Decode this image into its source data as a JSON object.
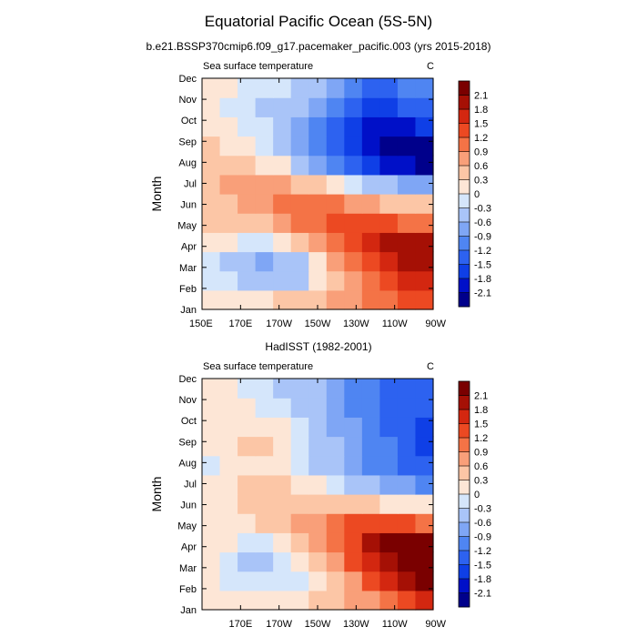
{
  "figure": {
    "title": "Equatorial Pacific Ocean (5S-5N)"
  },
  "colorbar": {
    "colors": [
      "#00008b",
      "#0010c8",
      "#0f3fe6",
      "#2d62f0",
      "#4f85f2",
      "#7fa6f5",
      "#a9c4f8",
      "#d5e6fb",
      "#fde6d6",
      "#fcc6a6",
      "#f99f79",
      "#f47346",
      "#ec4922",
      "#d32710",
      "#a51005",
      "#7a0000"
    ],
    "labels": [
      "-2.1",
      "-1.8",
      "-1.5",
      "-1.2",
      "-0.9",
      "-0.6",
      "-0.3",
      "0",
      "0.3",
      "0.6",
      "0.9",
      "1.2",
      "1.5",
      "1.8",
      "2.1"
    ]
  },
  "chart_data": [
    {
      "type": "heatmap",
      "title": "b.e21.BSSP370cmip6.f09_g17.pacemaker_pacific.003 (yrs 2015-2018)",
      "left_label": "Sea surface temperature",
      "right_label": "C",
      "ylabel": "Month",
      "x_tick_labels": [
        "150E",
        "170E",
        "170W",
        "150W",
        "130W",
        "110W",
        "90W"
      ],
      "y_tick_labels": [
        "Jan",
        "Feb",
        "Mar",
        "Apr",
        "May",
        "Jun",
        "Jul",
        "Aug",
        "Sep",
        "Oct",
        "Nov",
        "Dec"
      ],
      "x_values": [
        150,
        160,
        170,
        180,
        190,
        200,
        210,
        220,
        230,
        240,
        250,
        260,
        270
      ],
      "y_values": [
        "Jan",
        "Feb",
        "Mar",
        "Apr",
        "May",
        "Jun",
        "Jul",
        "Aug",
        "Sep",
        "Oct",
        "Nov",
        "Dec"
      ],
      "z": [
        [
          0.2,
          0.2,
          0.2,
          0.2,
          0.3,
          0.4,
          0.5,
          0.6,
          0.7,
          0.9,
          1.1,
          1.2,
          1.3
        ],
        [
          -0.1,
          -0.2,
          -0.3,
          -0.4,
          -0.4,
          -0.3,
          0.1,
          0.4,
          0.7,
          1.0,
          1.3,
          1.5,
          1.6
        ],
        [
          -0.1,
          -0.3,
          -0.5,
          -0.6,
          -0.5,
          -0.3,
          0.2,
          0.6,
          0.9,
          1.3,
          1.6,
          1.8,
          1.9
        ],
        [
          0.0,
          0.0,
          -0.1,
          -0.1,
          0.1,
          0.4,
          0.7,
          1.0,
          1.3,
          1.5,
          1.7,
          1.8,
          1.7
        ],
        [
          0.3,
          0.3,
          0.4,
          0.5,
          0.6,
          0.9,
          1.1,
          1.2,
          1.3,
          1.3,
          1.2,
          1.1,
          1.0
        ],
        [
          0.4,
          0.5,
          0.6,
          0.8,
          0.9,
          1.0,
          1.0,
          0.9,
          0.8,
          0.6,
          0.4,
          0.3,
          0.3
        ],
        [
          0.5,
          0.6,
          0.7,
          0.7,
          0.7,
          0.5,
          0.3,
          0.1,
          -0.1,
          -0.3,
          -0.5,
          -0.6,
          -0.7
        ],
        [
          0.4,
          0.4,
          0.3,
          0.2,
          0.0,
          -0.3,
          -0.6,
          -0.9,
          -1.2,
          -1.5,
          -1.7,
          -1.9,
          -2.0
        ],
        [
          0.3,
          0.1,
          0.0,
          -0.1,
          -0.3,
          -0.6,
          -0.9,
          -1.3,
          -1.6,
          -1.8,
          -2.0,
          -2.0,
          -2.0
        ],
        [
          0.1,
          0.0,
          -0.1,
          -0.2,
          -0.4,
          -0.6,
          -0.9,
          -1.2,
          -1.5,
          -1.7,
          -1.8,
          -1.7,
          -1.6
        ],
        [
          0.0,
          -0.1,
          -0.2,
          -0.3,
          -0.4,
          -0.5,
          -0.7,
          -1.0,
          -1.3,
          -1.5,
          -1.5,
          -1.4,
          -1.3
        ],
        [
          0.1,
          0.0,
          -0.1,
          -0.1,
          -0.2,
          -0.3,
          -0.5,
          -0.7,
          -1.0,
          -1.2,
          -1.2,
          -1.1,
          -1.0
        ]
      ],
      "zlim": [
        -2.25,
        2.25
      ]
    },
    {
      "type": "heatmap",
      "title": "HadISST (1982-2001)",
      "left_label": "Sea surface temperature",
      "right_label": "C",
      "ylabel": "Month",
      "x_tick_labels": [
        "170E",
        "170W",
        "150W",
        "130W",
        "110W",
        "90W"
      ],
      "y_tick_labels": [
        "Jan",
        "Feb",
        "Mar",
        "Apr",
        "May",
        "Jun",
        "Jul",
        "Aug",
        "Sep",
        "Oct",
        "Nov",
        "Dec"
      ],
      "x_values": [
        150,
        160,
        170,
        180,
        190,
        200,
        210,
        220,
        230,
        240,
        250,
        260,
        270
      ],
      "y_values": [
        "Jan",
        "Feb",
        "Mar",
        "Apr",
        "May",
        "Jun",
        "Jul",
        "Aug",
        "Sep",
        "Oct",
        "Nov",
        "Dec"
      ],
      "z": [
        [
          0.0,
          0.0,
          0.0,
          0.0,
          0.1,
          0.2,
          0.3,
          0.4,
          0.6,
          0.8,
          1.0,
          1.3,
          1.6
        ],
        [
          0.0,
          -0.1,
          -0.2,
          -0.2,
          -0.2,
          -0.1,
          0.1,
          0.4,
          0.8,
          1.2,
          1.6,
          1.8,
          2.0
        ],
        [
          0.0,
          -0.1,
          -0.3,
          -0.3,
          -0.2,
          0.0,
          0.3,
          0.8,
          1.2,
          1.6,
          1.9,
          2.2,
          2.3
        ],
        [
          0.0,
          0.0,
          -0.1,
          -0.1,
          0.0,
          0.3,
          0.6,
          1.0,
          1.4,
          1.8,
          2.0,
          2.2,
          2.2
        ],
        [
          0.1,
          0.1,
          0.2,
          0.3,
          0.4,
          0.6,
          0.8,
          1.0,
          1.2,
          1.3,
          1.3,
          1.2,
          1.1
        ],
        [
          0.1,
          0.2,
          0.3,
          0.3,
          0.4,
          0.5,
          0.5,
          0.5,
          0.4,
          0.3,
          0.2,
          0.1,
          0.0
        ],
        [
          0.0,
          0.2,
          0.3,
          0.3,
          0.3,
          0.2,
          0.1,
          -0.1,
          -0.3,
          -0.5,
          -0.6,
          -0.8,
          -0.9
        ],
        [
          -0.1,
          0.1,
          0.2,
          0.2,
          0.1,
          -0.1,
          -0.3,
          -0.5,
          -0.7,
          -0.9,
          -1.1,
          -1.3,
          -1.4
        ],
        [
          0.0,
          0.1,
          0.3,
          0.4,
          0.2,
          -0.1,
          -0.3,
          -0.5,
          -0.7,
          -0.9,
          -1.1,
          -1.4,
          -1.5
        ],
        [
          0.0,
          0.1,
          0.2,
          0.1,
          0.0,
          -0.2,
          -0.4,
          -0.6,
          -0.8,
          -1.0,
          -1.2,
          -1.4,
          -1.5
        ],
        [
          0.0,
          0.0,
          0.0,
          -0.1,
          -0.2,
          -0.3,
          -0.5,
          -0.7,
          -0.9,
          -1.1,
          -1.3,
          -1.4,
          -1.4
        ],
        [
          0.0,
          0.0,
          -0.1,
          -0.2,
          -0.3,
          -0.4,
          -0.5,
          -0.7,
          -0.9,
          -1.1,
          -1.2,
          -1.3,
          -1.2
        ]
      ],
      "zlim": [
        -2.25,
        2.25
      ]
    }
  ]
}
